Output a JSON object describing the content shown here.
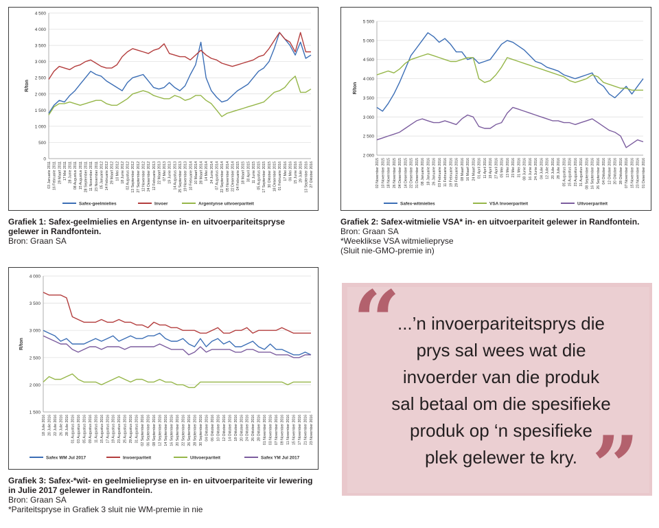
{
  "charts": [
    {
      "title": "Grafiek 1: Safex-geelmielies en Argentynse in- en uitvoerpariteitspryse gelewer in Randfontein.",
      "source": "Bron: Graan SA"
    },
    {
      "title": "Grafiek 2: Safex-witmielie VSA* in- en uitvoerpariteit gelewer in Randfontein.",
      "source": "Bron: Graan SA",
      "note1": "*Weeklikse VSA witmieliepryse",
      "note2": "(Sluit nie-GMO-premie in)"
    },
    {
      "title": "Grafiek 3: Safex-*wit- en geelmieliepryse en in- en uitvoerpariteite vir lewering in Julie 2017 gelewer in Randfontein.",
      "source": "Bron: Graan SA",
      "note1": "*Pariteitspryse in Grafiek 3 sluit nie WM-premie in nie"
    }
  ],
  "quote": {
    "lines": [
      "...’n invoerpariteitsprys die",
      "prys sal wees wat die",
      "invoerder van die produk",
      "sal betaal om die spesifieke",
      "produk op ‘n spesifieke",
      "plek gelewer te kry."
    ],
    "open_mark": "“",
    "close_mark": "”"
  },
  "chart_data": [
    {
      "type": "line",
      "ylabel": "R/ton",
      "ylim": [
        0,
        4500
      ],
      "yticks": [
        "0",
        "500",
        "1 000",
        "1 500",
        "2 000",
        "2 500",
        "3 000",
        "3 500",
        "4 000",
        "4 500"
      ],
      "categories": [
        "03 Januarie 2011",
        "16 Februarie 2011",
        "29 Maart 2011",
        "17 Mei 2011",
        "28 Junie 2011",
        "08 Augustus 2011",
        "15 Augustus 2011",
        "28 September 2011",
        "11 November 2011",
        "23 November 2011",
        "05 Januarie 2012",
        "14 Februarie 2012",
        "29 Maart 2012",
        "10 Mei 2012",
        "18 Junie 2012",
        "02 Augustus 2012",
        "13 September 2012",
        "27 September 2012",
        "12 November 2012",
        "24 Desember 2012",
        "12 Februarie 2013",
        "22 Maart 2013",
        "07 Mei 2013",
        "19 Junie 2013",
        "14 Augustus 2013",
        "25 September 2013",
        "19 November 2013",
        "10 Februarie 2014",
        "10 Maart 2014",
        "28 Maart 2014",
        "14 Mei 2014",
        "24 Junie 2014",
        "07 Augustus 2014",
        "22 September 2014",
        "05 November 2014",
        "22 Desember 2014",
        "04 Februarie 2015",
        "18 Maart 2015",
        "30 April 2015",
        "11 Junie 2015",
        "05 Augustus 2015",
        "17 September 2015",
        "30 Oktober 2015",
        "18 Desember 2015",
        "01 Februarie 2016",
        "17 Mei 2016",
        "06 Mei 2016",
        "15 Junie 2016",
        "29 Julie 2016",
        "13 September 2016",
        "27 Oktober 2016"
      ],
      "series": [
        {
          "name": "Safex-geelmielies",
          "color": "#3a6db5",
          "values": [
            1400,
            1650,
            1800,
            1750,
            1950,
            2100,
            2300,
            2500,
            2700,
            2600,
            2550,
            2400,
            2300,
            2200,
            2100,
            2350,
            2500,
            2550,
            2600,
            2400,
            2200,
            2150,
            2200,
            2350,
            2200,
            2100,
            2250,
            2600,
            2900,
            3600,
            2500,
            2100,
            1900,
            1750,
            1800,
            1950,
            2100,
            2200,
            2300,
            2500,
            2700,
            2800,
            3000,
            3400,
            3900,
            3700,
            3500,
            3200,
            3600,
            3100,
            3200
          ]
        },
        {
          "name": "Invoer",
          "color": "#b33c3c",
          "values": [
            2450,
            2700,
            2850,
            2800,
            2750,
            2850,
            2900,
            3000,
            3050,
            2950,
            2850,
            2800,
            2800,
            2900,
            3150,
            3300,
            3400,
            3350,
            3300,
            3250,
            3350,
            3400,
            3550,
            3250,
            3200,
            3150,
            3150,
            3050,
            3200,
            3350,
            3200,
            3100,
            3050,
            2950,
            2900,
            2850,
            2900,
            2950,
            3000,
            3050,
            3150,
            3200,
            3400,
            3650,
            3900,
            3700,
            3600,
            3300,
            3900,
            3300,
            3300
          ]
        },
        {
          "name": "Argentynse uitvoerpariteit",
          "color": "#95b648",
          "values": [
            1350,
            1600,
            1700,
            1700,
            1750,
            1700,
            1650,
            1700,
            1750,
            1800,
            1800,
            1700,
            1650,
            1650,
            1750,
            1850,
            2000,
            2050,
            2100,
            2050,
            1950,
            1900,
            1850,
            1850,
            1950,
            1900,
            1800,
            1850,
            1950,
            1950,
            1800,
            1700,
            1500,
            1300,
            1400,
            1450,
            1500,
            1550,
            1600,
            1650,
            1700,
            1750,
            1900,
            2050,
            2100,
            2200,
            2400,
            2550,
            2050,
            2050,
            2150
          ]
        }
      ],
      "legend": "bottom"
    },
    {
      "type": "line",
      "ylabel": "R/ton",
      "ylim": [
        2000,
        5500
      ],
      "yticks": [
        "2 000",
        "2 500",
        "3 000",
        "3 500",
        "4 000",
        "4 500",
        "5 000",
        "5 500"
      ],
      "categories": [
        "02 November 2015",
        "10 November 2015",
        "18 November 2015",
        "26 November 2015",
        "04 Desember 2015",
        "14 Desember 2015",
        "22 Desember 2015",
        "31 Desember 2015",
        "08 Januarie 2016",
        "18 Januarie 2016",
        "26 Januarie 2016",
        "03 Februarie 2016",
        "11 Februarie 2016",
        "19 Februarie 2016",
        "29 Februarie 2016",
        "08 Maart 2016",
        "16 Maart 2016",
        "24 Maart 2016",
        "01 April 2016",
        "11 April 2016",
        "19 April 2016",
        "27 April 2016",
        "05 Mei 2016",
        "13 Mei 2016",
        "23 Mei 2016",
        "31 Mei 2016",
        "08 Junie 2016",
        "16 Junie 2016",
        "24 Junie 2016",
        "04 Julie 2016",
        "12 Julie 2016",
        "20 Julie 2016",
        "28 Julie 2016",
        "05 Augustus 2016",
        "15 Augustus 2016",
        "23 Augustus 2016",
        "31 Augustus 2016",
        "08 September 2016",
        "16 September 2016",
        "26 September 2016",
        "04 Oktober 2016",
        "12 Oktober 2016",
        "20 Oktober 2016",
        "28 Oktober 2016",
        "07 November 2016",
        "15 November 2016",
        "23 November 2016",
        "01 Desember 2016"
      ],
      "series": [
        {
          "name": "Safex-witmielies",
          "color": "#3a6db5",
          "values": [
            3250,
            3150,
            3350,
            3600,
            3900,
            4250,
            4600,
            4800,
            5000,
            5200,
            5100,
            4950,
            5050,
            4900,
            4700,
            4700,
            4500,
            4550,
            4400,
            4450,
            4500,
            4700,
            4900,
            5000,
            4950,
            4850,
            4750,
            4600,
            4450,
            4400,
            4300,
            4250,
            4200,
            4100,
            4050,
            4000,
            4050,
            4100,
            4150,
            3900,
            3800,
            3600,
            3500,
            3650,
            3800,
            3600,
            3800,
            4000
          ]
        },
        {
          "name": "VSA Invoerpariteit",
          "color": "#95b648",
          "values": [
            4100,
            4150,
            4200,
            4150,
            4250,
            4400,
            4500,
            4550,
            4600,
            4650,
            4600,
            4550,
            4500,
            4450,
            4450,
            4500,
            4550,
            4550,
            4000,
            3900,
            3950,
            4100,
            4300,
            4550,
            4500,
            4450,
            4400,
            4350,
            4300,
            4250,
            4200,
            4150,
            4100,
            4050,
            3950,
            3900,
            3950,
            4000,
            4100,
            4050,
            3900,
            3850,
            3800,
            3750,
            3750,
            3700,
            3700,
            3700
          ]
        },
        {
          "name": "Uitvoerpariteit",
          "color": "#7b5c9e",
          "values": [
            2400,
            2450,
            2500,
            2550,
            2600,
            2700,
            2800,
            2900,
            2950,
            2900,
            2850,
            2850,
            2900,
            2850,
            2800,
            2950,
            3050,
            3000,
            2750,
            2700,
            2700,
            2800,
            2850,
            3100,
            3250,
            3200,
            3150,
            3100,
            3050,
            3000,
            2950,
            2900,
            2900,
            2850,
            2850,
            2800,
            2850,
            2900,
            2950,
            2850,
            2750,
            2650,
            2600,
            2500,
            2200,
            2300,
            2400,
            2350
          ]
        }
      ],
      "legend": "bottom"
    },
    {
      "type": "line",
      "ylabel": "R/ton",
      "ylim": [
        1500,
        4000
      ],
      "yticks": [
        "1 500",
        "2 000",
        "2 500",
        "3 000",
        "3 500",
        "4 000"
      ],
      "categories": [
        "18 Julie 2016",
        "20 Julie 2016",
        "22 Julie 2016",
        "26 Julie 2016",
        "28 Julie 2016",
        "01 Augustus 2016",
        "03 Augustus 2016",
        "05 Augustus 2016",
        "09 Augustus 2016",
        "11 Augustus 2016",
        "15 Augustus 2016",
        "17 Augustus 2016",
        "19 Augustus 2016",
        "23 Augustus 2016",
        "25 Augustus 2016",
        "29 Augustus 2016",
        "31 Augustus 2016",
        "02 September 2016",
        "06 September 2016",
        "08 September 2016",
        "12 September 2016",
        "14 September 2016",
        "16 September 2016",
        "20 September 2016",
        "22 September 2016",
        "26 September 2016",
        "28 September 2016",
        "30 September 2016",
        "04 Oktober 2016",
        "06 Oktober 2016",
        "10 Oktober 2016",
        "12 Oktober 2016",
        "14 Oktober 2016",
        "18 Oktober 2016",
        "20 Oktober 2016",
        "24 Oktober 2016",
        "26 Oktober 2016",
        "28 Oktober 2016",
        "01 November 2016",
        "03 November 2016",
        "07 November 2016",
        "09 November 2016",
        "11 November 2016",
        "15 November 2016",
        "17 November 2016",
        "21 November 2016",
        "23 November 2016"
      ],
      "series": [
        {
          "name": "Safex WM Jul 2017",
          "color": "#3a6db5",
          "values": [
            3000,
            2950,
            2900,
            2800,
            2850,
            2750,
            2750,
            2750,
            2800,
            2850,
            2800,
            2850,
            2900,
            2800,
            2850,
            2900,
            2850,
            2850,
            2900,
            2900,
            2950,
            2850,
            2800,
            2800,
            2850,
            2750,
            2700,
            2850,
            2700,
            2800,
            2850,
            2750,
            2800,
            2700,
            2700,
            2750,
            2800,
            2700,
            2650,
            2750,
            2650,
            2650,
            2600,
            2550,
            2550,
            2600,
            2550
          ]
        },
        {
          "name": "Invoerpariteit",
          "color": "#b33c3c",
          "values": [
            3700,
            3650,
            3650,
            3650,
            3600,
            3250,
            3200,
            3150,
            3150,
            3150,
            3200,
            3150,
            3150,
            3200,
            3150,
            3150,
            3100,
            3100,
            3050,
            3150,
            3100,
            3100,
            3050,
            3050,
            3000,
            3000,
            3000,
            2950,
            2950,
            3000,
            3050,
            2950,
            2950,
            3000,
            3000,
            3050,
            2950,
            3000,
            3000,
            3000,
            3000,
            3050,
            3000,
            2950,
            2950,
            2950,
            2950
          ]
        },
        {
          "name": "Uitvoerpariteit",
          "color": "#95b648",
          "values": [
            2050,
            2150,
            2100,
            2100,
            2150,
            2200,
            2100,
            2050,
            2050,
            2050,
            2000,
            2050,
            2100,
            2150,
            2100,
            2050,
            2100,
            2100,
            2050,
            2050,
            2100,
            2050,
            2050,
            2000,
            2000,
            1950,
            1950,
            2050,
            2050,
            2050,
            2050,
            2050,
            2050,
            2050,
            2050,
            2050,
            2050,
            2050,
            2050,
            2050,
            2050,
            2050,
            2000,
            2050,
            2050,
            2050,
            2050
          ]
        },
        {
          "name": "Safex YM Jul 2017",
          "color": "#7b5c9e",
          "values": [
            2900,
            2850,
            2800,
            2750,
            2750,
            2650,
            2600,
            2650,
            2700,
            2700,
            2650,
            2700,
            2700,
            2700,
            2650,
            2700,
            2700,
            2700,
            2700,
            2700,
            2750,
            2700,
            2650,
            2650,
            2650,
            2550,
            2600,
            2700,
            2600,
            2650,
            2650,
            2650,
            2650,
            2600,
            2600,
            2650,
            2650,
            2600,
            2600,
            2600,
            2550,
            2550,
            2550,
            2500,
            2500,
            2550,
            2550
          ]
        }
      ],
      "legend": "bottom"
    }
  ]
}
